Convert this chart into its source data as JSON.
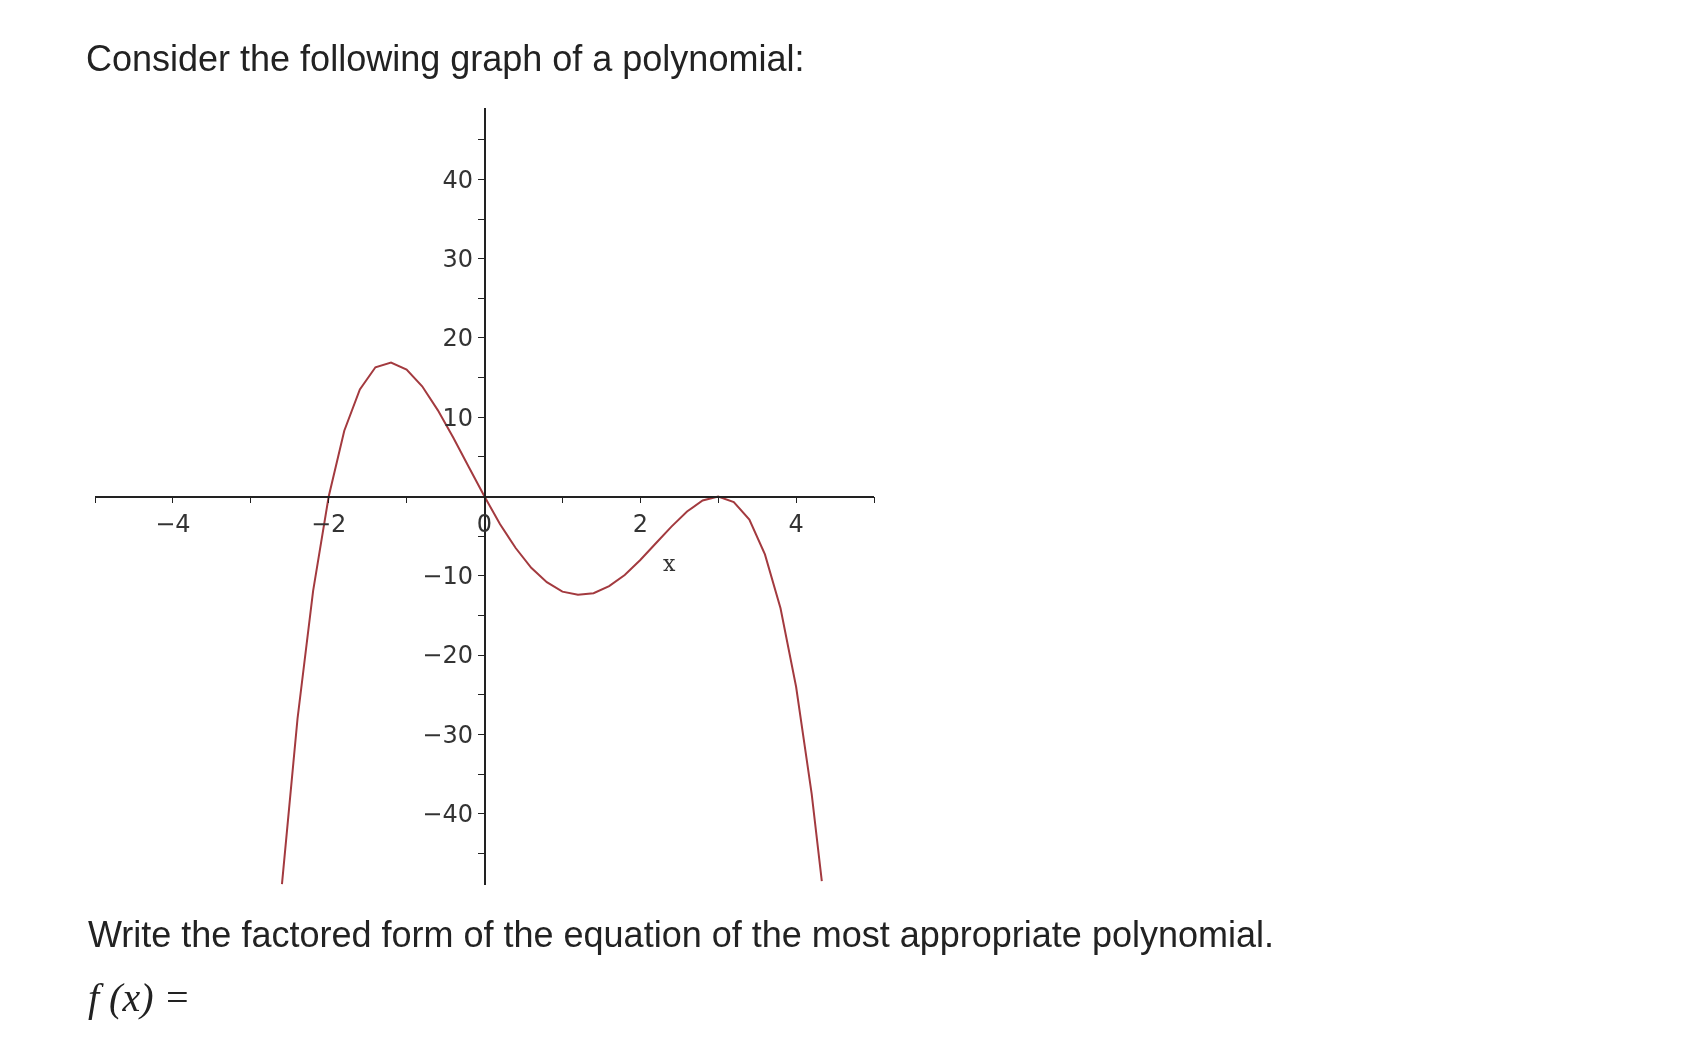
{
  "chart_data": {
    "type": "line",
    "title": "Consider the following graph of a polynomial:",
    "xlabel": "x",
    "annotations": [
      "Write the factored form of the equation of the most appropriate polynomial.",
      "f (x) ="
    ],
    "x": [
      -2.6,
      -2.4,
      -2.2,
      -2,
      -1.8,
      -1.6,
      -1.4,
      -1.2,
      -1,
      -0.8,
      -0.6,
      -0.4,
      -0.2,
      0,
      0.2,
      0.4,
      0.6,
      0.8,
      1,
      1.2,
      1.4,
      1.6,
      1.8,
      2,
      2.2,
      2.4,
      2.6,
      2.8,
      3,
      3.2,
      3.4,
      3.6,
      3.8,
      4,
      4.2,
      4.33
    ],
    "series": [
      {
        "color": "#a33a3f",
        "values": [
          -48.9,
          -28,
          -11.9,
          0,
          8.3,
          13.5,
          16.3,
          16.9,
          16,
          13.9,
          10.9,
          7.4,
          3.7,
          0,
          -3.5,
          -6.5,
          -9,
          -10.8,
          -12,
          -12.4,
          -12.2,
          -11.3,
          -9.9,
          -8,
          -5.9,
          -3.8,
          -1.9,
          -0.5,
          0,
          -0.7,
          -2.9,
          -7.3,
          -14.1,
          -24,
          -37.5,
          -48.5
        ]
      }
    ],
    "xlim": [
      -5,
      5
    ],
    "ylim": [
      -49,
      49
    ],
    "xticks": [
      {
        "value": -5,
        "label": null
      },
      -4,
      {
        "value": -3,
        "label": null
      },
      -2,
      {
        "value": -1,
        "label": null
      },
      0,
      {
        "value": 1,
        "label": null
      },
      2,
      {
        "value": 3,
        "label": null
      },
      4,
      {
        "value": 5,
        "label": null
      }
    ],
    "yticks": [
      {
        "value": -45,
        "label": null
      },
      -40,
      {
        "value": -35,
        "label": null
      },
      -30,
      {
        "value": -25,
        "label": null
      },
      -20,
      {
        "value": -15,
        "label": null
      },
      -10,
      {
        "value": -5,
        "label": null
      },
      {
        "value": 5,
        "label": null
      },
      10,
      {
        "value": 15,
        "label": null
      },
      20,
      {
        "value": 25,
        "label": null
      },
      30,
      {
        "value": 35,
        "label": null
      },
      40,
      {
        "value": 45,
        "label": null
      }
    ],
    "legend": false,
    "marker": "none",
    "line_style": "solid"
  }
}
